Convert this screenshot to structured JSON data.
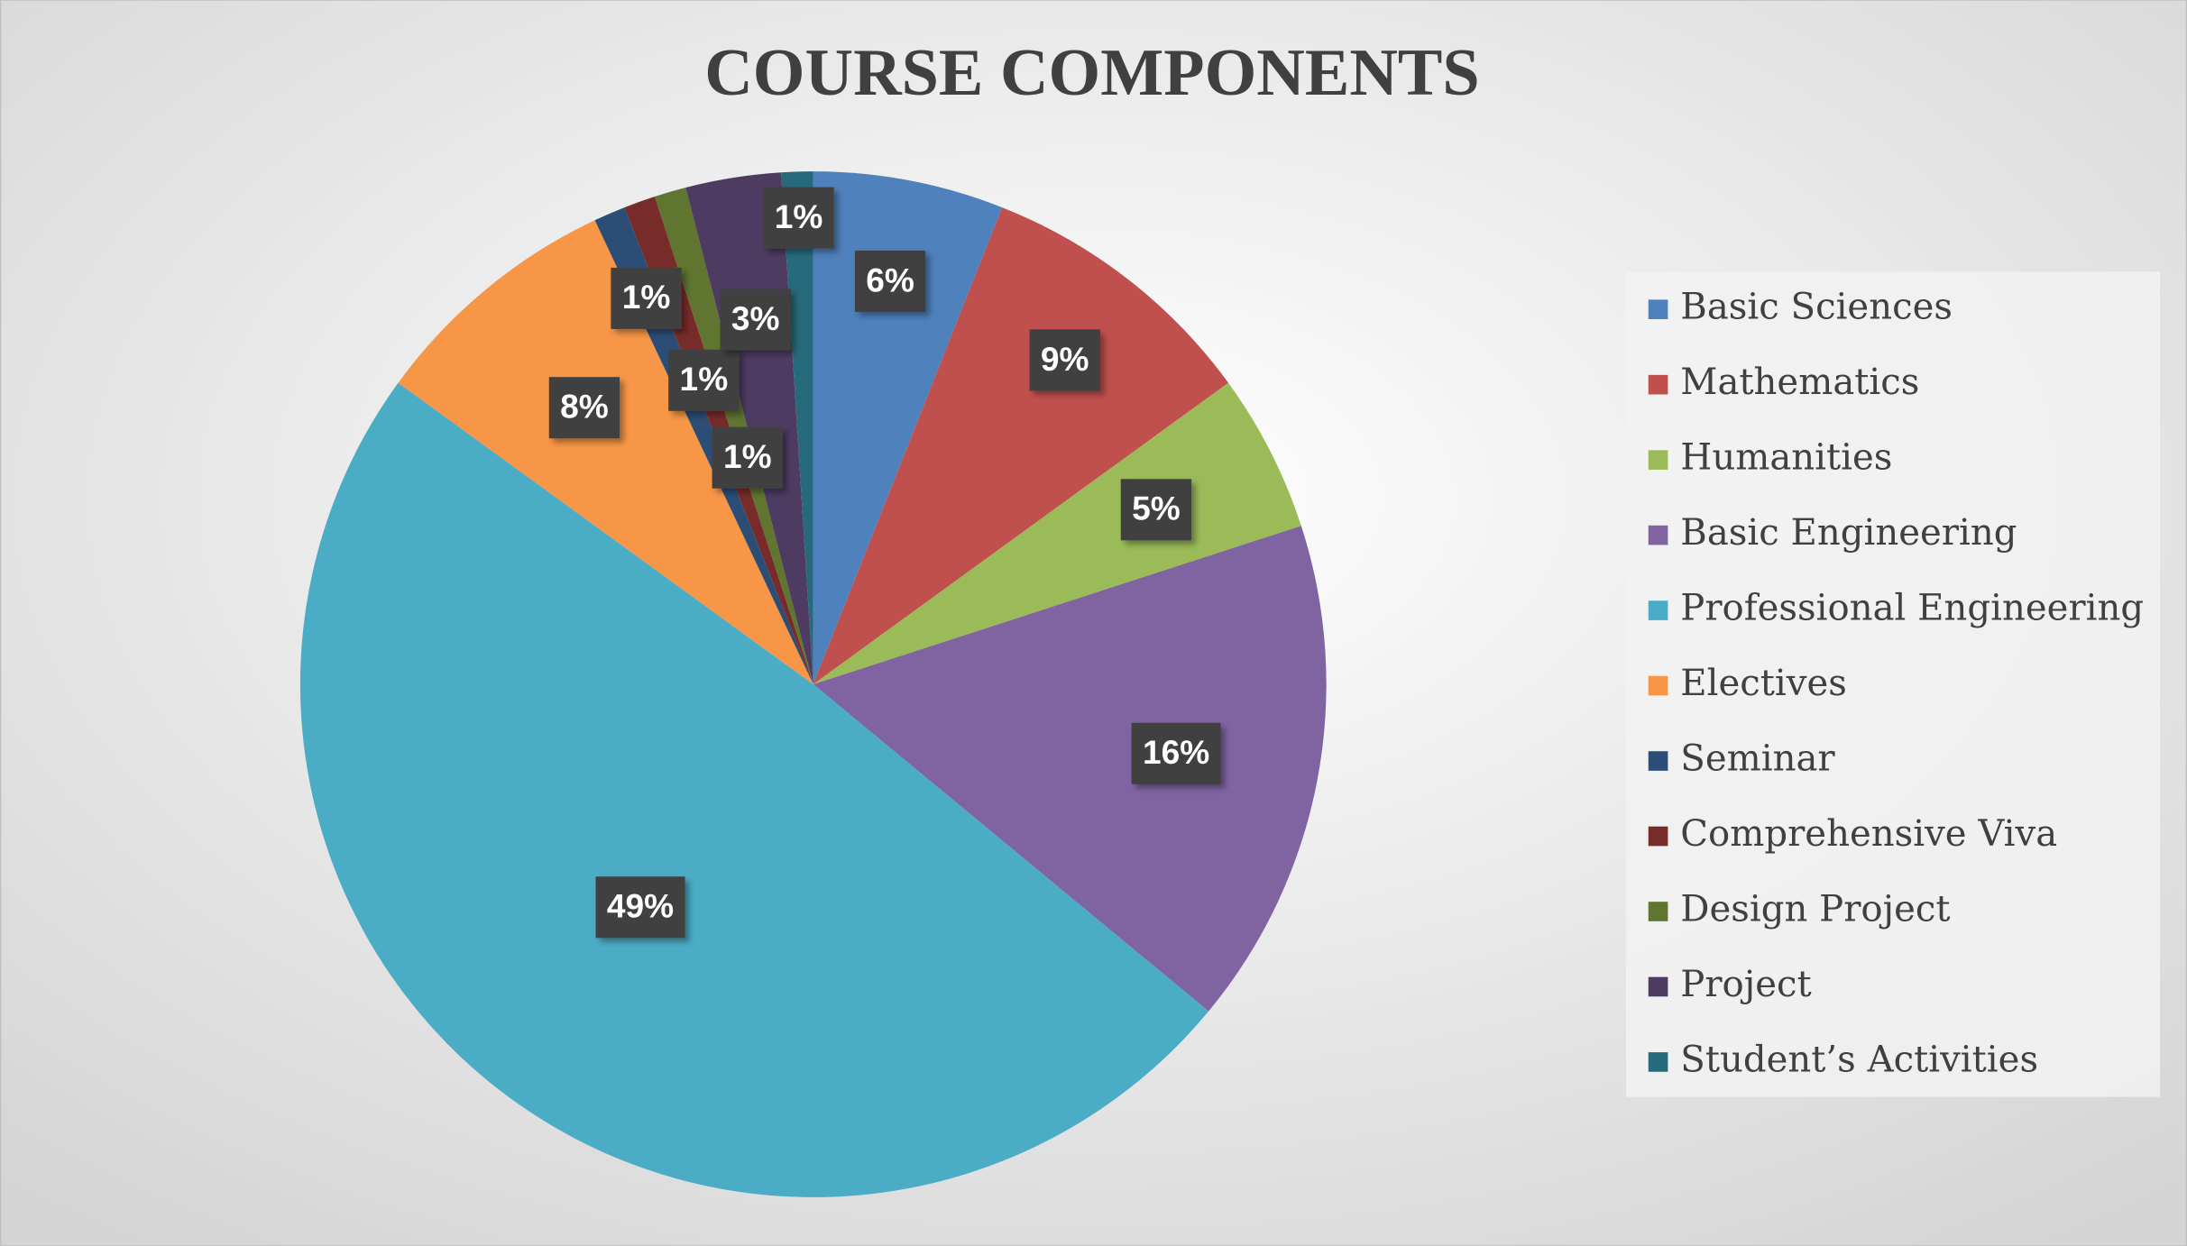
{
  "chart_data": {
    "type": "pie",
    "title": "COURSE COMPONENTS",
    "categories": [
      "Basic Sciences",
      "Mathematics",
      "Humanities",
      "Basic Engineering",
      "Professional Engineering",
      "Electives",
      "Seminar",
      "Comprehensive Viva",
      "Design Project",
      "Project",
      "Student’s Activities"
    ],
    "values": [
      6,
      9,
      5,
      16,
      49,
      8,
      1,
      1,
      1,
      3,
      1
    ],
    "value_labels": [
      "6%",
      "9%",
      "5%",
      "16%",
      "49%",
      "8%",
      "1%",
      "1%",
      "1%",
      "3%",
      "1%"
    ],
    "colors": [
      "#4f81bd",
      "#c0504d",
      "#9bbb59",
      "#8064a2",
      "#4bacc6",
      "#f79646",
      "#2c4d75",
      "#772c2a",
      "#5f7530",
      "#4d3b62",
      "#276a7c"
    ],
    "legend": "right"
  }
}
